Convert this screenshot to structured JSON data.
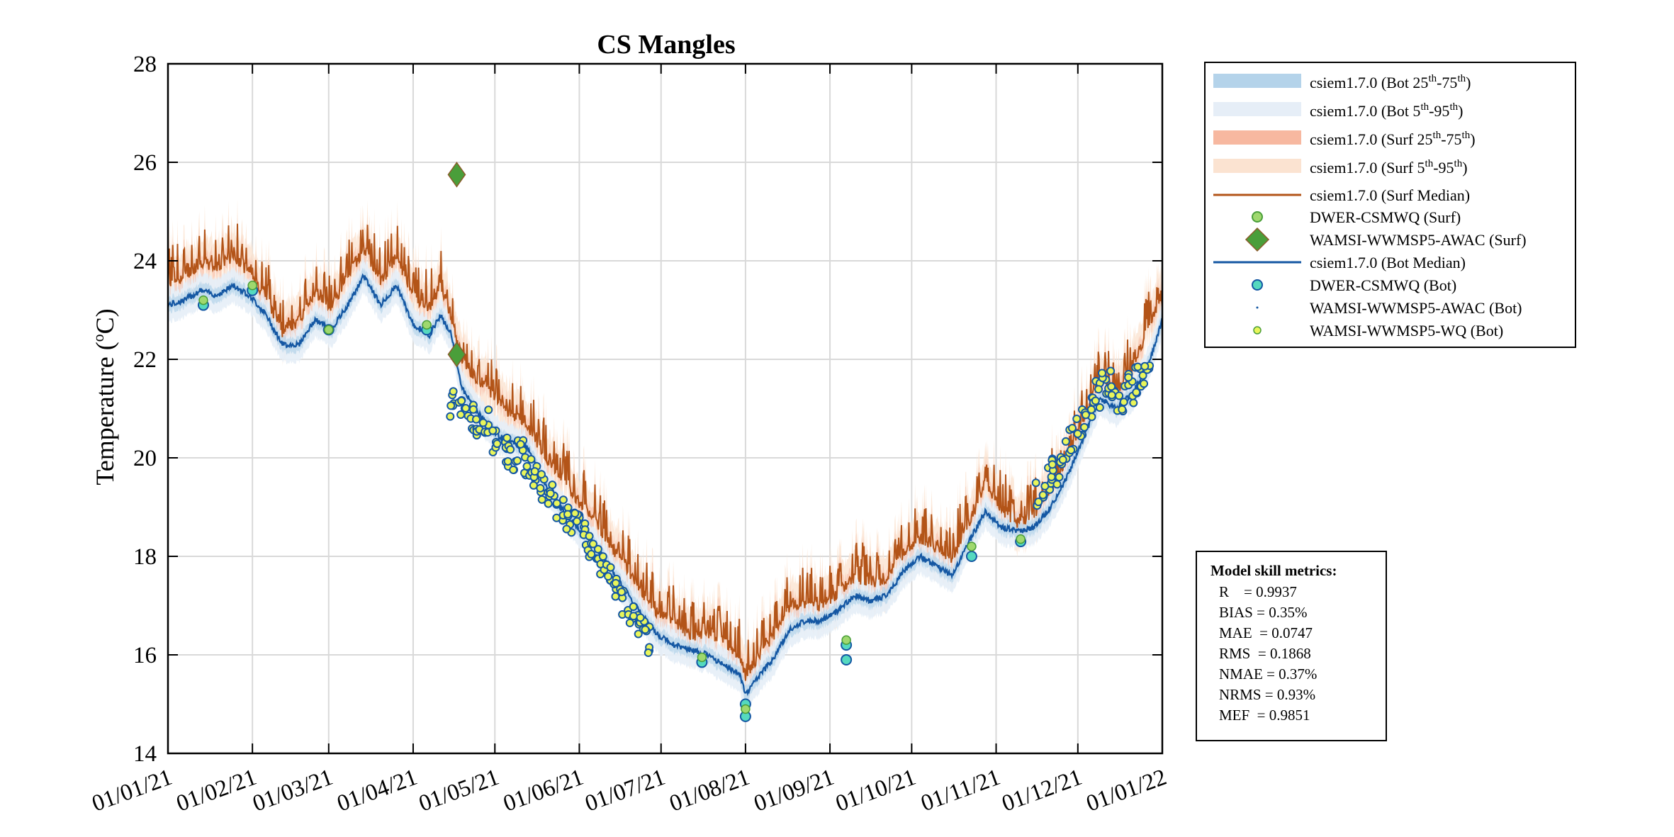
{
  "chart_data": {
    "type": "line",
    "title": "CS Mangles",
    "ylabel": "Temperature (°C)",
    "ylabel_main": "Temperature (",
    "ylabel_degree": "o",
    "ylabel_unit": "C)",
    "xlabel": "",
    "ylim": [
      14,
      28
    ],
    "yticks": [
      "14",
      "16",
      "18",
      "20",
      "22",
      "24",
      "26",
      "28"
    ],
    "x_range_days": [
      0,
      365
    ],
    "xticks": [
      {
        "day": 0,
        "label": "01/01/21"
      },
      {
        "day": 31,
        "label": "01/02/21"
      },
      {
        "day": 59,
        "label": "01/03/21"
      },
      {
        "day": 90,
        "label": "01/04/21"
      },
      {
        "day": 120,
        "label": "01/05/21"
      },
      {
        "day": 151,
        "label": "01/06/21"
      },
      {
        "day": 181,
        "label": "01/07/21"
      },
      {
        "day": 212,
        "label": "01/08/21"
      },
      {
        "day": 243,
        "label": "01/09/21"
      },
      {
        "day": 273,
        "label": "01/10/21"
      },
      {
        "day": 304,
        "label": "01/11/21"
      },
      {
        "day": 334,
        "label": "01/12/21"
      },
      {
        "day": 365,
        "label": "01/01/22"
      }
    ],
    "grid": true,
    "series": [
      {
        "name": "csiem1.7.0 (Surf Median)",
        "color": "#b35418",
        "x": [
          0,
          6,
          12,
          18,
          24,
          30,
          36,
          42,
          48,
          54,
          60,
          66,
          72,
          78,
          84,
          90,
          96,
          100,
          104,
          108,
          114,
          120,
          126,
          132,
          138,
          144,
          150,
          156,
          162,
          168,
          174,
          180,
          186,
          192,
          198,
          204,
          210,
          212,
          216,
          222,
          228,
          234,
          240,
          246,
          252,
          258,
          264,
          270,
          276,
          282,
          288,
          294,
          300,
          306,
          312,
          318,
          324,
          330,
          336,
          342,
          348,
          354,
          360,
          365
        ],
        "y": [
          23.5,
          23.6,
          23.9,
          23.8,
          24.0,
          23.7,
          23.2,
          22.5,
          22.7,
          23.3,
          23.0,
          23.6,
          24.2,
          23.5,
          24.0,
          23.2,
          23.0,
          23.4,
          22.8,
          21.9,
          21.5,
          21.2,
          20.8,
          20.6,
          20.0,
          19.6,
          19.1,
          18.7,
          18.2,
          17.7,
          17.2,
          16.7,
          16.6,
          16.3,
          16.4,
          16.2,
          15.9,
          15.5,
          15.8,
          16.3,
          16.9,
          17.0,
          16.9,
          17.2,
          17.5,
          17.4,
          17.5,
          18.0,
          18.3,
          18.1,
          17.9,
          18.6,
          19.4,
          18.9,
          18.6,
          18.8,
          19.3,
          19.9,
          20.7,
          21.5,
          21.3,
          21.7,
          22.6,
          23.1
        ]
      },
      {
        "name": "csiem1.7.0 (Bot Median)",
        "color": "#1457a3",
        "x": [
          0,
          6,
          12,
          18,
          24,
          30,
          36,
          42,
          48,
          54,
          60,
          66,
          72,
          78,
          84,
          90,
          96,
          100,
          104,
          108,
          114,
          120,
          126,
          132,
          138,
          144,
          150,
          156,
          162,
          168,
          174,
          180,
          186,
          192,
          198,
          204,
          210,
          212,
          216,
          222,
          228,
          234,
          240,
          246,
          252,
          258,
          264,
          270,
          276,
          282,
          288,
          294,
          300,
          306,
          312,
          318,
          324,
          330,
          336,
          342,
          348,
          354,
          360,
          365
        ],
        "y": [
          23.1,
          23.2,
          23.4,
          23.3,
          23.5,
          23.3,
          22.9,
          22.3,
          22.3,
          22.8,
          22.6,
          23.1,
          23.7,
          23.1,
          23.5,
          22.7,
          22.5,
          22.9,
          22.5,
          21.4,
          20.9,
          20.5,
          20.3,
          20.2,
          19.5,
          19.0,
          18.6,
          18.3,
          17.8,
          17.3,
          16.8,
          16.4,
          16.2,
          16.1,
          16.0,
          15.8,
          15.6,
          15.2,
          15.5,
          15.9,
          16.5,
          16.7,
          16.7,
          16.9,
          17.2,
          17.1,
          17.2,
          17.7,
          18.0,
          17.8,
          17.6,
          18.3,
          18.9,
          18.6,
          18.5,
          18.6,
          19.0,
          19.6,
          20.4,
          21.2,
          21.0,
          21.3,
          21.9,
          22.8
        ]
      },
      {
        "name": "WAMSI-WWMSP5-AWAC (Surf)",
        "color": "#4a9e3a",
        "x": [
          106,
          106
        ],
        "y": [
          25.75,
          22.1
        ]
      },
      {
        "name": "DWER-CSMWQ (Surf)",
        "color": "#f2e36b",
        "x": [
          13,
          31,
          59,
          95,
          196,
          212,
          249,
          295,
          313
        ],
        "y": [
          23.2,
          23.5,
          22.6,
          22.7,
          15.95,
          14.9,
          16.3,
          18.2,
          18.35
        ]
      },
      {
        "name": "DWER-CSMWQ (Bot)",
        "color": "#55d9bf",
        "x": [
          13,
          31,
          59,
          95,
          196,
          212,
          212,
          249,
          249,
          295,
          313
        ],
        "y": [
          23.1,
          23.4,
          22.6,
          22.6,
          15.85,
          14.75,
          15.0,
          15.9,
          16.2,
          18.0,
          18.3
        ]
      },
      {
        "name": "WAMSI-WWMSP5-WQ (Bot)",
        "color": "#e9f55a",
        "x": [
          105,
          108,
          111,
          114,
          117,
          120,
          123,
          126,
          129,
          132,
          135,
          138,
          141,
          144,
          147,
          150,
          153,
          156,
          159,
          162,
          165,
          168,
          171,
          174,
          176,
          320,
          323,
          326,
          329,
          332,
          335,
          338,
          341,
          344,
          347,
          350,
          353,
          356,
          359
        ],
        "y": [
          21.1,
          20.9,
          20.8,
          20.6,
          20.7,
          20.4,
          20.2,
          20.0,
          20.1,
          19.8,
          19.6,
          19.4,
          19.2,
          18.9,
          18.7,
          18.6,
          18.4,
          18.2,
          17.9,
          17.6,
          17.4,
          17.1,
          16.9,
          16.6,
          16.3,
          19.2,
          19.5,
          19.7,
          20.1,
          20.4,
          20.7,
          21.0,
          21.3,
          21.6,
          21.5,
          21.2,
          21.4,
          21.6,
          21.8
        ]
      }
    ],
    "bands": [
      {
        "name": "csiem1.7.0 (Surf 5th-95th)",
        "color": "#fbe3d1"
      },
      {
        "name": "csiem1.7.0 (Surf 25th-75th)",
        "color": "#f7b8a0"
      },
      {
        "name": "csiem1.7.0 (Bot 5th-95th)",
        "color": "#e6eef7"
      },
      {
        "name": "csiem1.7.0 (Bot 25th-75th)",
        "color": "#b4d3ea"
      }
    ]
  },
  "legend": {
    "items": [
      {
        "prefix": "csiem1.7.0 (Bot 25",
        "sup1": "th",
        "mid": "-75",
        "sup2": "th",
        "suffix": ")"
      },
      {
        "prefix": "csiem1.7.0 (Bot 5",
        "sup1": "th",
        "mid": "-95",
        "sup2": "th",
        "suffix": ")"
      },
      {
        "prefix": "csiem1.7.0 (Surf 25",
        "sup1": "th",
        "mid": "-75",
        "sup2": "th",
        "suffix": ")"
      },
      {
        "prefix": "csiem1.7.0 (Surf 5",
        "sup1": "th",
        "mid": "-95",
        "sup2": "th",
        "suffix": ")"
      },
      {
        "text": "csiem1.7.0 (Surf Median)"
      },
      {
        "text": "DWER-CSMWQ (Surf)"
      },
      {
        "text": "WAMSI-WWMSP5-AWAC (Surf)"
      },
      {
        "text": "csiem1.7.0 (Bot Median)"
      },
      {
        "text": "DWER-CSMWQ (Bot)"
      },
      {
        "text": "WAMSI-WWMSP5-AWAC (Bot)"
      },
      {
        "text": "WAMSI-WWMSP5-WQ (Bot)"
      }
    ]
  },
  "metrics": {
    "title": "Model skill metrics:",
    "lines": [
      "R    = 0.9937",
      "BIAS = 0.35%",
      "MAE  = 0.0747",
      "RMS  = 0.1868",
      "NMAE = 0.37%",
      "NRMS = 0.93%",
      "MEF  = 0.9851"
    ]
  },
  "colors": {
    "surf_median": "#b35418",
    "bot_median": "#1457a3",
    "grid": "#d9d9d9"
  }
}
